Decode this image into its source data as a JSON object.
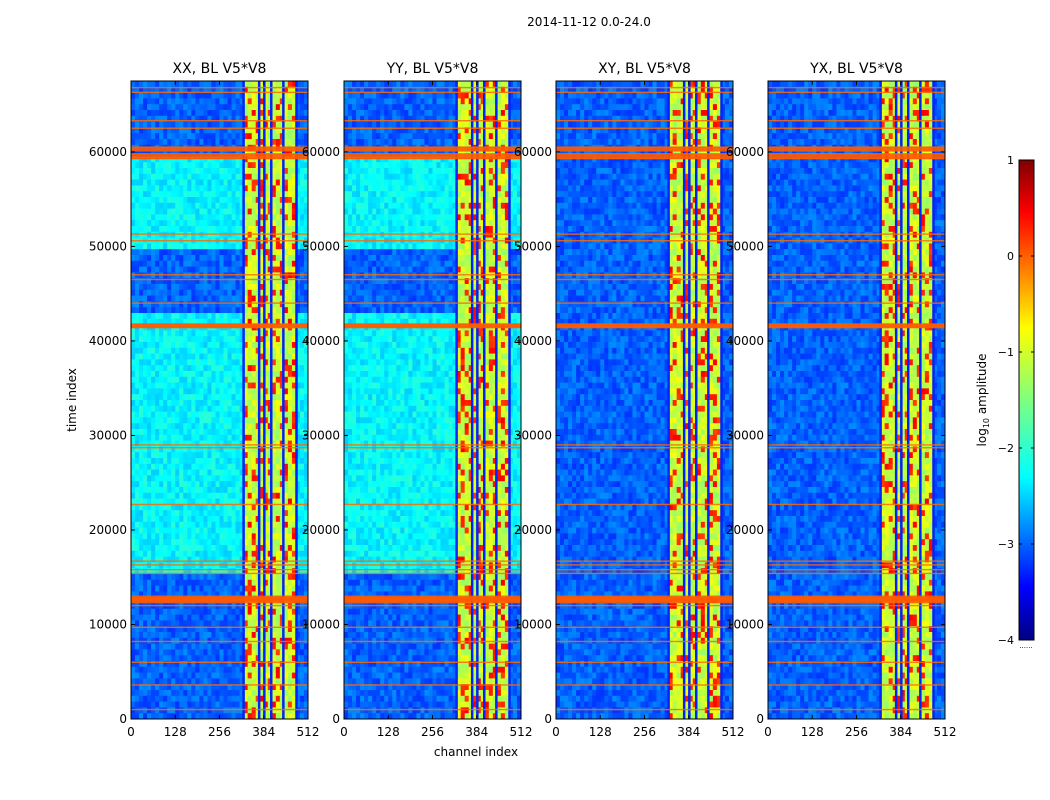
{
  "chart_data": {
    "type": "heatmap",
    "suptitle": "2014-11-12 0.0-24.0",
    "xlabel": "channel index",
    "ylabel": "time index",
    "xlim": [
      0,
      512
    ],
    "ylim": [
      0,
      67500
    ],
    "xticks": [
      0,
      128,
      256,
      384,
      512
    ],
    "yticks": [
      0,
      10000,
      20000,
      30000,
      40000,
      50000,
      60000
    ],
    "panels": [
      {
        "title": "XX, BL V5*V8",
        "pol": "XX",
        "cross": false
      },
      {
        "title": "YY, BL V5*V8",
        "pol": "YY",
        "cross": false
      },
      {
        "title": "XY, BL V5*V8",
        "pol": "XY",
        "cross": true
      },
      {
        "title": "YX, BL V5*V8",
        "pol": "YX",
        "cross": true
      }
    ],
    "colorbar": {
      "label": "log10 amplitude",
      "label_base": "log",
      "label_sub": "10",
      "label_rest": " amplitude",
      "colormap": "jet",
      "range": [
        -4,
        1
      ],
      "ticks": [
        1,
        0,
        -1,
        -2,
        -3,
        -4
      ],
      "tick_labels": [
        "1",
        "0",
        "−1",
        "−2",
        "−3",
        "−4"
      ],
      "below_label": "......"
    },
    "features": {
      "rfi_channel_range": [
        325,
        478
      ],
      "dark_channel_lines": [
        325,
        370,
        385,
        405,
        440,
        478
      ],
      "flagged_rows": [
        1000,
        3600,
        6000,
        8200,
        9700,
        12000,
        12500,
        12800,
        15400,
        15800,
        16300,
        16700,
        22700,
        28700,
        29000,
        41500,
        41700,
        44000,
        46500,
        47000,
        50600,
        51300,
        59300,
        59800,
        60500,
        62500,
        63300,
        66300,
        66800
      ],
      "thick_flagged_rows": [
        12500,
        12800,
        41600,
        60300,
        59500
      ],
      "elevated_bands_autocorr": [
        [
          15600,
          29300
        ],
        [
          29300,
          42800
        ],
        [
          49500,
          59800
        ]
      ]
    }
  }
}
